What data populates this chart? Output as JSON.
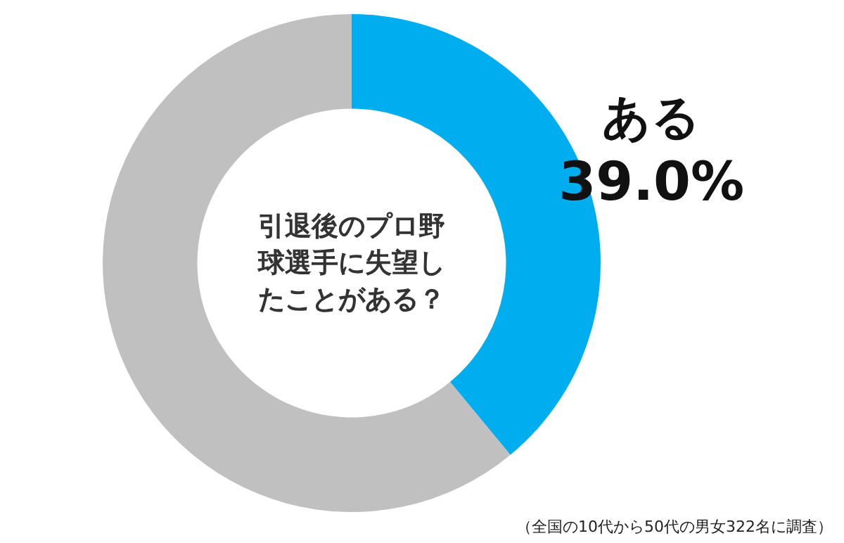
{
  "chart_data": {
    "type": "donut",
    "title": "引退後のプロ野球選手に失望したことがある？",
    "categories": [
      "ある",
      null
    ],
    "values": [
      39.0,
      61.0
    ],
    "colors": [
      "#00aeef",
      "#c0c0c0"
    ],
    "value_labels": [
      "39.0%",
      null
    ],
    "annotations": [
      "（全国の10代から50代の男女322名に調査）"
    ]
  }
}
